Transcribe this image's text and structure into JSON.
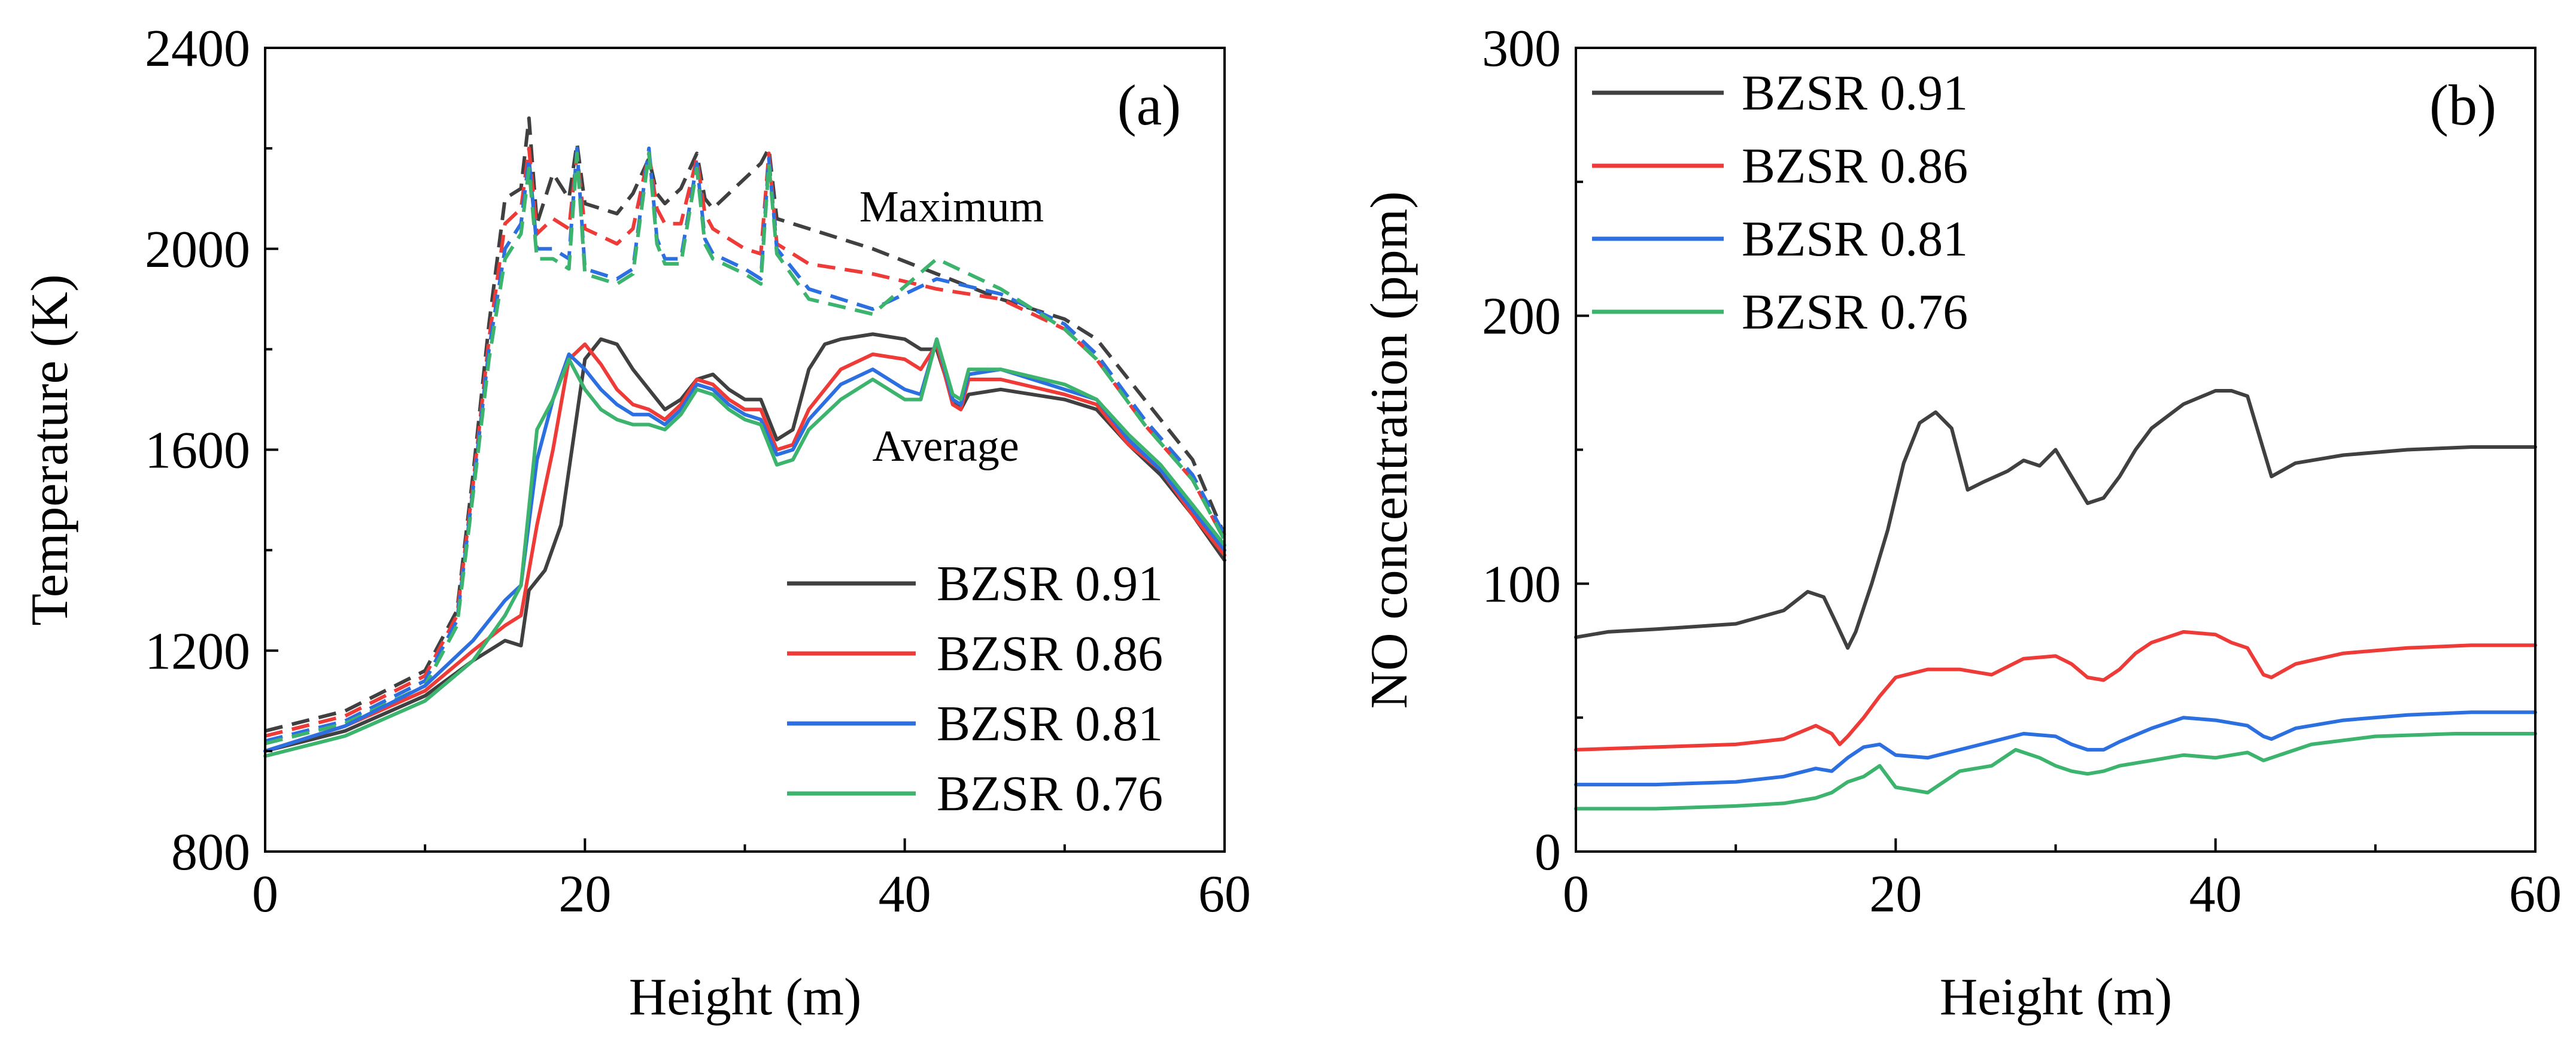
{
  "figure": {
    "panels": [
      {
        "id": "a",
        "panel_label": "(a)",
        "xlabel": "Height (m)",
        "ylabel": "Temperature (K)",
        "annotations": {
          "maximum": "Maximum",
          "average": "Average"
        }
      },
      {
        "id": "b",
        "panel_label": "(b)",
        "xlabel": "Height (m)",
        "ylabel": "NO concentration (ppm)"
      }
    ]
  },
  "colors": {
    "BZSR 0.91": "#404040",
    "BZSR 0.86": "#ee3b37",
    "BZSR 0.81": "#2b6fe0",
    "BZSR 0.76": "#3cb46e"
  },
  "chart_data": [
    {
      "type": "line",
      "panel_label": "(a)",
      "xlabel": "Height (m)",
      "ylabel": "Temperature (K)",
      "xlim": [
        0,
        60
      ],
      "ylim": [
        800,
        2400
      ],
      "xticks": [
        0,
        20,
        40,
        60
      ],
      "yticks": [
        800,
        1200,
        1600,
        2000,
        2400
      ],
      "legend_position": "bottom-right",
      "legend": [
        "BZSR 0.91",
        "BZSR 0.86",
        "BZSR 0.81",
        "BZSR 0.76"
      ],
      "annotations": [
        "Maximum",
        "Average"
      ],
      "series": [
        {
          "name": "BZSR 0.91",
          "kind": "average",
          "style": "solid",
          "x": [
            0,
            5,
            10,
            13,
            15,
            16,
            16.5,
            17.5,
            18.5,
            20,
            21,
            22,
            23,
            24,
            25,
            26,
            27,
            28,
            29,
            30,
            31,
            32,
            33,
            34,
            35,
            36,
            38,
            40,
            41,
            42,
            43,
            43.5,
            44,
            46,
            50,
            52,
            54,
            56,
            58,
            60
          ],
          "y": [
            1000,
            1040,
            1110,
            1180,
            1220,
            1210,
            1320,
            1360,
            1450,
            1780,
            1820,
            1810,
            1760,
            1720,
            1680,
            1700,
            1740,
            1750,
            1720,
            1700,
            1700,
            1620,
            1640,
            1760,
            1810,
            1820,
            1830,
            1820,
            1800,
            1800,
            1700,
            1680,
            1710,
            1720,
            1700,
            1680,
            1610,
            1550,
            1470,
            1380
          ]
        },
        {
          "name": "BZSR 0.86",
          "kind": "average",
          "style": "solid",
          "x": [
            0,
            5,
            10,
            13,
            15,
            16,
            17,
            18,
            19,
            20,
            21,
            22,
            23,
            24,
            25,
            26,
            27,
            28,
            29,
            30,
            31,
            32,
            33,
            34,
            36,
            38,
            40,
            41,
            42,
            43,
            43.5,
            44,
            46,
            50,
            52,
            54,
            56,
            58,
            60
          ],
          "y": [
            1000,
            1050,
            1120,
            1200,
            1250,
            1270,
            1450,
            1600,
            1780,
            1810,
            1770,
            1720,
            1690,
            1680,
            1660,
            1690,
            1740,
            1730,
            1700,
            1680,
            1680,
            1600,
            1610,
            1680,
            1760,
            1790,
            1780,
            1760,
            1810,
            1690,
            1680,
            1740,
            1740,
            1710,
            1690,
            1610,
            1560,
            1470,
            1390
          ]
        },
        {
          "name": "BZSR 0.81",
          "kind": "average",
          "style": "solid",
          "x": [
            0,
            5,
            10,
            13,
            15,
            16,
            17,
            18,
            19,
            20,
            21,
            22,
            23,
            24,
            25,
            26,
            27,
            28,
            29,
            30,
            31,
            32,
            33,
            34,
            36,
            38,
            40,
            41,
            42,
            43,
            43.5,
            44,
            46,
            50,
            52,
            54,
            56,
            58,
            60
          ],
          "y": [
            1000,
            1050,
            1130,
            1220,
            1300,
            1330,
            1580,
            1700,
            1790,
            1760,
            1720,
            1690,
            1670,
            1670,
            1650,
            1680,
            1730,
            1720,
            1690,
            1670,
            1660,
            1590,
            1600,
            1660,
            1730,
            1760,
            1720,
            1710,
            1820,
            1700,
            1690,
            1750,
            1760,
            1720,
            1700,
            1620,
            1560,
            1480,
            1400
          ]
        },
        {
          "name": "BZSR 0.76",
          "kind": "average",
          "style": "solid",
          "x": [
            0,
            5,
            10,
            13,
            15,
            16,
            17,
            18,
            19,
            20,
            21,
            22,
            23,
            24,
            25,
            26,
            27,
            28,
            29,
            30,
            31,
            32,
            33,
            34,
            36,
            38,
            40,
            41,
            42,
            43,
            43.5,
            44,
            46,
            50,
            52,
            54,
            56,
            58,
            60
          ],
          "y": [
            990,
            1030,
            1100,
            1180,
            1270,
            1330,
            1640,
            1700,
            1780,
            1720,
            1680,
            1660,
            1650,
            1650,
            1640,
            1670,
            1720,
            1710,
            1680,
            1660,
            1650,
            1570,
            1580,
            1640,
            1700,
            1740,
            1700,
            1700,
            1820,
            1710,
            1700,
            1760,
            1760,
            1730,
            1700,
            1630,
            1570,
            1490,
            1410
          ]
        },
        {
          "name": "BZSR 0.91",
          "kind": "maximum",
          "style": "dashed",
          "x": [
            0,
            5,
            10,
            12,
            13,
            14,
            15,
            16,
            16.5,
            17,
            18,
            19,
            19.5,
            20,
            22,
            23,
            24,
            24.5,
            25,
            26,
            27,
            27.5,
            28,
            30,
            31,
            31.5,
            32,
            34,
            38,
            42,
            46,
            50,
            52,
            55,
            58,
            60
          ],
          "y": [
            1040,
            1080,
            1160,
            1280,
            1550,
            1850,
            2100,
            2120,
            2260,
            2050,
            2150,
            2100,
            2210,
            2090,
            2070,
            2110,
            2180,
            2110,
            2090,
            2120,
            2190,
            2100,
            2080,
            2140,
            2170,
            2200,
            2060,
            2040,
            2000,
            1950,
            1900,
            1860,
            1820,
            1700,
            1580,
            1430
          ]
        },
        {
          "name": "BZSR 0.86",
          "kind": "maximum",
          "style": "dashed",
          "x": [
            0,
            5,
            10,
            12,
            13,
            14,
            15,
            16,
            16.5,
            17,
            18,
            19,
            19.5,
            20,
            22,
            23,
            24,
            24.5,
            25,
            26,
            27,
            27.5,
            28,
            30,
            31,
            31.5,
            32,
            34,
            38,
            42,
            46,
            50,
            52,
            55,
            58,
            60
          ],
          "y": [
            1030,
            1070,
            1150,
            1270,
            1530,
            1820,
            2050,
            2080,
            2200,
            2030,
            2060,
            2040,
            2190,
            2040,
            2010,
            2040,
            2190,
            2080,
            2050,
            2050,
            2180,
            2070,
            2040,
            2000,
            1990,
            2190,
            2010,
            1970,
            1950,
            1920,
            1900,
            1840,
            1780,
            1650,
            1540,
            1420
          ]
        },
        {
          "name": "BZSR 0.81",
          "kind": "maximum",
          "style": "dashed",
          "x": [
            0,
            5,
            10,
            12,
            13,
            14,
            15,
            16,
            16.5,
            17,
            18,
            19,
            19.5,
            20,
            22,
            23,
            24,
            24.5,
            25,
            26,
            27,
            27.5,
            28,
            30,
            31,
            31.5,
            32,
            34,
            38,
            42,
            46,
            50,
            52,
            55,
            58,
            60
          ],
          "y": [
            1020,
            1060,
            1140,
            1260,
            1520,
            1800,
            2000,
            2050,
            2180,
            2000,
            2000,
            1980,
            2200,
            1960,
            1940,
            1960,
            2200,
            2020,
            1980,
            1980,
            2170,
            2020,
            1990,
            1960,
            1940,
            2180,
            2000,
            1920,
            1880,
            1940,
            1910,
            1850,
            1790,
            1660,
            1550,
            1430
          ]
        },
        {
          "name": "BZSR 0.76",
          "kind": "maximum",
          "style": "dashed",
          "x": [
            0,
            5,
            10,
            12,
            13,
            14,
            15,
            16,
            16.5,
            17,
            18,
            19,
            19.5,
            20,
            22,
            23,
            24,
            24.5,
            25,
            26,
            27,
            27.5,
            28,
            30,
            31,
            31.5,
            32,
            34,
            38,
            42,
            46,
            50,
            52,
            55,
            58,
            60
          ],
          "y": [
            1015,
            1055,
            1130,
            1250,
            1510,
            1780,
            1980,
            2030,
            2160,
            1980,
            1980,
            1960,
            2190,
            1950,
            1930,
            1950,
            2190,
            2010,
            1970,
            1970,
            2160,
            2010,
            1980,
            1950,
            1930,
            2170,
            1990,
            1900,
            1870,
            1980,
            1920,
            1840,
            1780,
            1650,
            1540,
            1420
          ]
        }
      ]
    },
    {
      "type": "line",
      "panel_label": "(b)",
      "xlabel": "Height (m)",
      "ylabel": "NO concentration (ppm)",
      "xlim": [
        0,
        60
      ],
      "ylim": [
        0,
        300
      ],
      "xticks": [
        0,
        20,
        40,
        60
      ],
      "yticks": [
        0,
        100,
        200,
        300
      ],
      "legend_position": "top-left",
      "legend": [
        "BZSR 0.91",
        "BZSR 0.86",
        "BZSR 0.81",
        "BZSR 0.76"
      ],
      "series": [
        {
          "name": "BZSR 0.91",
          "x": [
            0,
            2,
            5,
            10,
            13,
            14.5,
            15.5,
            16.3,
            17,
            17.5,
            18.5,
            19.5,
            20.5,
            21.5,
            22.5,
            23.5,
            24.5,
            25.5,
            27,
            28,
            29,
            30,
            31,
            32,
            33,
            34,
            35,
            36,
            38,
            40,
            41,
            42,
            43,
            43.5,
            45,
            48,
            52,
            56,
            60
          ],
          "y": [
            80,
            82,
            83,
            85,
            90,
            97,
            95,
            85,
            76,
            82,
            100,
            120,
            145,
            160,
            164,
            158,
            135,
            138,
            142,
            146,
            144,
            150,
            140,
            130,
            132,
            140,
            150,
            158,
            167,
            172,
            172,
            170,
            150,
            140,
            145,
            148,
            150,
            151,
            151
          ]
        },
        {
          "name": "BZSR 0.86",
          "x": [
            0,
            5,
            10,
            13,
            15,
            16,
            16.5,
            17,
            18,
            19,
            20,
            22,
            24,
            26,
            28,
            30,
            31,
            32,
            33,
            34,
            35,
            36,
            38,
            40,
            41,
            42,
            43,
            43.5,
            45,
            48,
            52,
            56,
            60
          ],
          "y": [
            38,
            39,
            40,
            42,
            47,
            44,
            40,
            43,
            50,
            58,
            65,
            68,
            68,
            66,
            72,
            73,
            70,
            65,
            64,
            68,
            74,
            78,
            82,
            81,
            78,
            76,
            66,
            65,
            70,
            74,
            76,
            77,
            77
          ]
        },
        {
          "name": "BZSR 0.81",
          "x": [
            0,
            5,
            10,
            13,
            15,
            16,
            17,
            18,
            19,
            20,
            22,
            24,
            26,
            28,
            30,
            31,
            32,
            33,
            34,
            36,
            38,
            40,
            42,
            43,
            43.5,
            45,
            48,
            52,
            56,
            60
          ],
          "y": [
            25,
            25,
            26,
            28,
            31,
            30,
            35,
            39,
            40,
            36,
            35,
            38,
            41,
            44,
            43,
            40,
            38,
            38,
            41,
            46,
            50,
            49,
            47,
            43,
            42,
            46,
            49,
            51,
            52,
            52
          ]
        },
        {
          "name": "BZSR 0.76",
          "x": [
            0,
            5,
            10,
            13,
            15,
            16,
            17,
            18,
            19,
            20,
            22,
            24,
            26,
            27.5,
            29,
            30,
            31,
            32,
            33,
            34,
            36,
            38,
            40,
            42,
            43,
            44,
            46,
            50,
            55,
            60
          ],
          "y": [
            16,
            16,
            17,
            18,
            20,
            22,
            26,
            28,
            32,
            24,
            22,
            30,
            32,
            38,
            35,
            32,
            30,
            29,
            30,
            32,
            34,
            36,
            35,
            37,
            34,
            36,
            40,
            43,
            44,
            44
          ]
        }
      ]
    }
  ]
}
